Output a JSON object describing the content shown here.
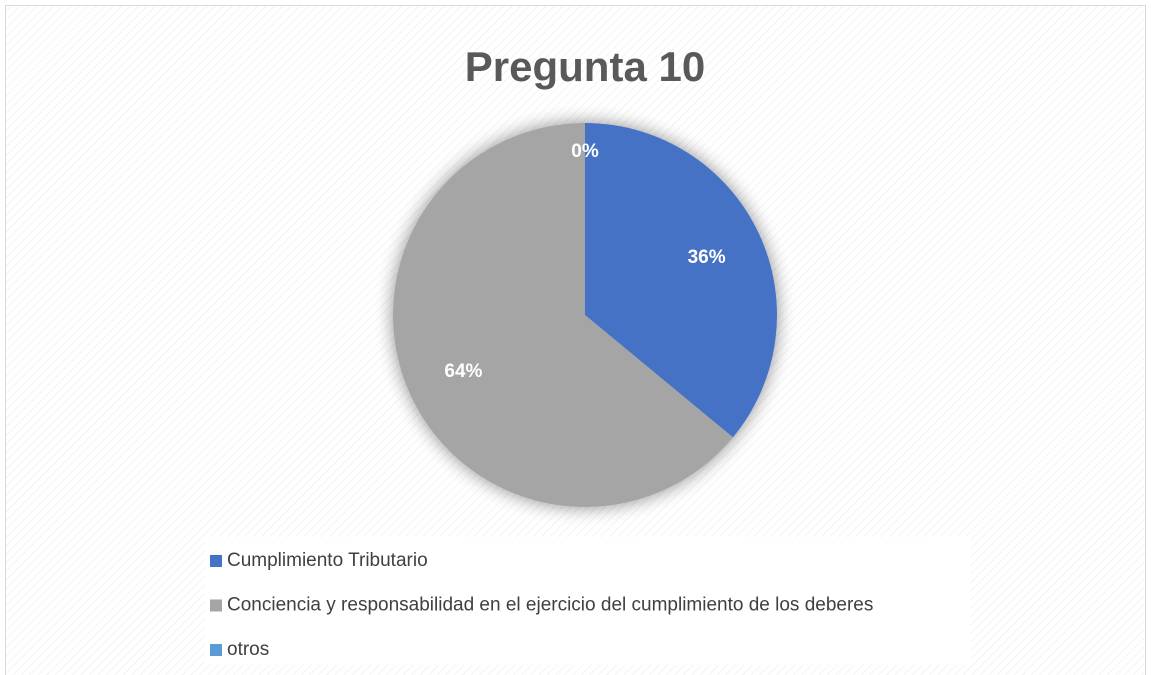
{
  "chart_data": {
    "type": "pie",
    "title": "Pregunta 10",
    "categories": [
      "Cumplimiento Tributario",
      "Conciencia y responsabilidad en el ejercicio del cumplimiento de los deberes",
      "otros"
    ],
    "values": [
      36,
      64,
      0
    ],
    "value_labels": [
      "36%",
      "64%",
      "0%"
    ],
    "colors": [
      "#4472c4",
      "#a5a5a5",
      "#5b9bd5"
    ],
    "legend": "bottom"
  }
}
